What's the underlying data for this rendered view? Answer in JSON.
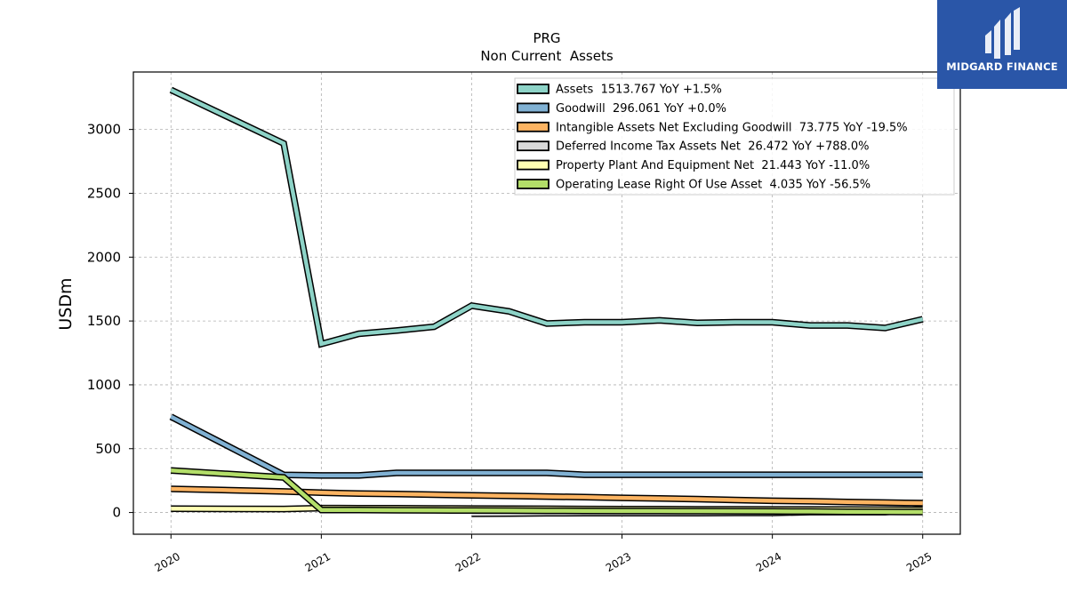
{
  "logo": {
    "text": "MIDGARD FINANCE"
  },
  "chart_data": {
    "type": "line",
    "title": "PRG",
    "subtitle": "Non Current  Assets",
    "ylabel": "USDm",
    "ylim": [
      -170,
      3450
    ],
    "xlim": [
      2019.75,
      2025.25
    ],
    "yticks": [
      0,
      500,
      1000,
      1500,
      2000,
      2500,
      3000
    ],
    "xticks": [
      2020,
      2021,
      2022,
      2023,
      2024,
      2025
    ],
    "grid": true,
    "legend_position": "top-right",
    "series": [
      {
        "name": "Assets  1513.767 YoY +1.5%",
        "color": "#8dd3c7",
        "x": [
          2020.0,
          2020.75,
          2021.0,
          2021.25,
          2021.5,
          2021.75,
          2022.0,
          2022.25,
          2022.5,
          2022.75,
          2023.0,
          2023.25,
          2023.5,
          2023.75,
          2024.0,
          2024.25,
          2024.5,
          2024.75,
          2025.0
        ],
        "values": [
          3310,
          2890,
          1320,
          1400,
          1425,
          1455,
          1620,
          1575,
          1480,
          1490,
          1490,
          1505,
          1485,
          1490,
          1490,
          1465,
          1465,
          1445,
          1514
        ]
      },
      {
        "name": "Goodwill  296.061 YoY +0.0%",
        "color": "#80b1d3",
        "x": [
          2020.0,
          2020.75,
          2021.0,
          2021.25,
          2021.5,
          2021.75,
          2022.0,
          2022.25,
          2022.5,
          2022.75,
          2023.0,
          2023.25,
          2023.5,
          2023.75,
          2024.0,
          2024.25,
          2024.5,
          2024.75,
          2025.0
        ],
        "values": [
          750,
          295,
          290,
          290,
          310,
          310,
          310,
          310,
          310,
          296,
          296,
          296,
          296,
          296,
          296,
          296,
          296,
          296,
          296
        ]
      },
      {
        "name": "Intangible Assets Net Excluding Goodwill  73.775 YoY -19.5%",
        "color": "#fdb462",
        "x": [
          2020.0,
          2020.75,
          2021.0,
          2021.25,
          2021.5,
          2021.75,
          2022.0,
          2022.25,
          2022.5,
          2022.75,
          2023.0,
          2023.25,
          2023.5,
          2023.75,
          2024.0,
          2024.25,
          2024.5,
          2024.75,
          2025.0
        ],
        "values": [
          185,
          165,
          155,
          148,
          145,
          140,
          135,
          130,
          125,
          120,
          115,
          110,
          105,
          98,
          92,
          88,
          82,
          78,
          74
        ]
      },
      {
        "name": "Deferred Income Tax Assets Net  26.472 YoY +788.0%",
        "color": "#d9d9d9",
        "x": [
          2022.0,
          2022.25,
          2022.5,
          2022.75,
          2023.0,
          2023.25,
          2023.5,
          2023.75,
          2024.0,
          2024.25,
          2024.5,
          2024.75,
          2025.0
        ],
        "values": [
          -10,
          -8,
          -6,
          -5,
          -5,
          -4,
          -4,
          -3,
          -3,
          3,
          3,
          3,
          26
        ]
      },
      {
        "name": "Property Plant And Equipment Net  21.443 YoY -11.0%",
        "color": "#ffffb3",
        "x": [
          2020.0,
          2020.75,
          2021.0,
          2021.25,
          2021.5,
          2021.75,
          2022.0,
          2022.25,
          2022.5,
          2022.75,
          2023.0,
          2023.25,
          2023.5,
          2023.75,
          2024.0,
          2024.25,
          2024.5,
          2024.75,
          2025.0
        ],
        "values": [
          30,
          28,
          35,
          34,
          33,
          32,
          31,
          30,
          29,
          28,
          27,
          26,
          25,
          25,
          24,
          24,
          23,
          22,
          21
        ]
      },
      {
        "name": "Operating Lease Right Of Use Asset  4.035 YoY -56.5%",
        "color": "#b3de69",
        "x": [
          2020.0,
          2020.75,
          2021.0,
          2021.25,
          2021.5,
          2021.75,
          2022.0,
          2022.25,
          2022.5,
          2022.75,
          2023.0,
          2023.25,
          2023.5,
          2023.75,
          2024.0,
          2024.25,
          2024.5,
          2024.75,
          2025.0
        ],
        "values": [
          330,
          275,
          20,
          20,
          18,
          17,
          16,
          15,
          14,
          13,
          12,
          12,
          11,
          10,
          9,
          8,
          6,
          5,
          4
        ]
      }
    ]
  }
}
